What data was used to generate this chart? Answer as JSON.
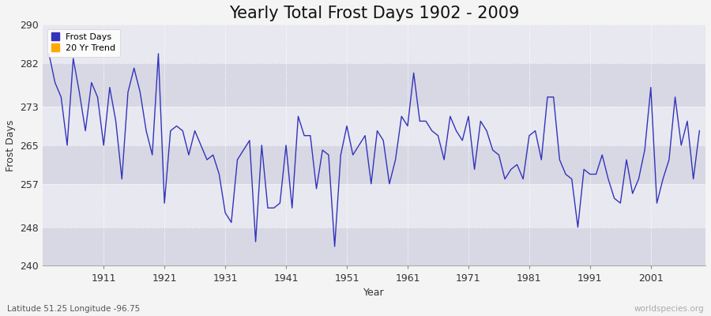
{
  "title": "Yearly Total Frost Days 1902 - 2009",
  "xlabel": "Year",
  "ylabel": "Frost Days",
  "lat_lon_label": "Latitude 51.25 Longitude -96.75",
  "watermark": "worldspecies.org",
  "years": [
    1902,
    1903,
    1904,
    1905,
    1906,
    1907,
    1908,
    1909,
    1910,
    1911,
    1912,
    1913,
    1914,
    1915,
    1916,
    1917,
    1918,
    1919,
    1920,
    1921,
    1922,
    1923,
    1924,
    1925,
    1926,
    1927,
    1928,
    1929,
    1930,
    1931,
    1932,
    1933,
    1934,
    1935,
    1936,
    1937,
    1938,
    1939,
    1940,
    1941,
    1942,
    1943,
    1944,
    1945,
    1946,
    1947,
    1948,
    1949,
    1950,
    1951,
    1952,
    1953,
    1954,
    1955,
    1956,
    1957,
    1958,
    1959,
    1960,
    1961,
    1962,
    1963,
    1964,
    1965,
    1966,
    1967,
    1968,
    1969,
    1970,
    1971,
    1972,
    1973,
    1974,
    1975,
    1976,
    1977,
    1978,
    1979,
    1980,
    1981,
    1982,
    1983,
    1984,
    1985,
    1986,
    1987,
    1988,
    1989,
    1990,
    1991,
    1992,
    1993,
    1994,
    1995,
    1996,
    1997,
    1998,
    1999,
    2000,
    2001,
    2002,
    2003,
    2004,
    2005,
    2006,
    2007,
    2008,
    2009
  ],
  "frost_days": [
    284,
    278,
    275,
    265,
    283,
    276,
    268,
    278,
    275,
    265,
    277,
    270,
    258,
    276,
    281,
    276,
    268,
    263,
    284,
    253,
    268,
    269,
    268,
    263,
    268,
    265,
    262,
    263,
    259,
    251,
    249,
    262,
    264,
    266,
    245,
    265,
    252,
    252,
    253,
    265,
    252,
    271,
    267,
    267,
    256,
    264,
    263,
    244,
    263,
    269,
    263,
    265,
    267,
    257,
    268,
    266,
    257,
    262,
    271,
    269,
    280,
    270,
    270,
    268,
    267,
    262,
    271,
    268,
    266,
    271,
    260,
    270,
    268,
    264,
    263,
    258,
    260,
    261,
    258,
    267,
    268,
    262,
    275,
    275,
    262,
    259,
    258,
    248,
    260,
    259,
    259,
    263,
    258,
    254,
    253,
    262,
    255,
    258,
    264,
    277,
    253,
    258,
    262,
    275,
    265,
    270,
    258,
    268
  ],
  "line_color": "#3333bb",
  "bg_color_light": "#e8e8f0",
  "bg_color_dark": "#d8d8e4",
  "fig_bg_color": "#f4f4f4",
  "grid_color": "#ffffff",
  "ylim": [
    240,
    290
  ],
  "yticks": [
    240,
    248,
    257,
    265,
    273,
    282,
    290
  ],
  "xticks": [
    1911,
    1921,
    1931,
    1941,
    1951,
    1961,
    1971,
    1981,
    1991,
    2001
  ],
  "xlim": [
    1901,
    2010
  ],
  "title_fontsize": 15,
  "axis_fontsize": 9,
  "legend_fontsize": 8
}
